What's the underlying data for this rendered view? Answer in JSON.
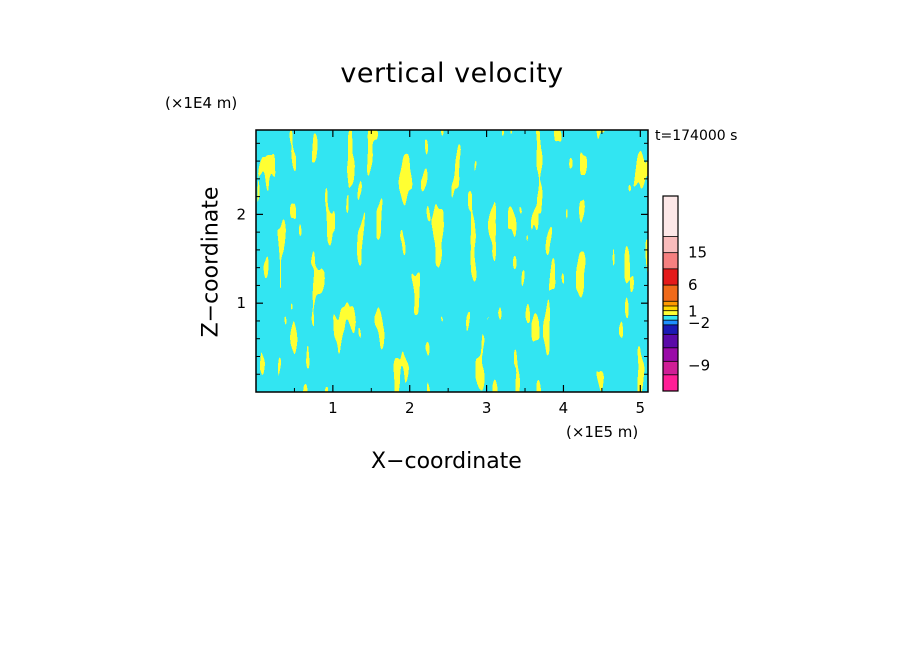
{
  "chart_data": {
    "type": "heatmap",
    "title": "vertical velocity",
    "xlabel": "X−coordinate",
    "ylabel": "Z−coordinate",
    "x_unit": "(×1E5 m)",
    "y_unit": "(×1E4 m)",
    "time_label": "t=174000 s",
    "xlim": [
      0,
      5.1
    ],
    "ylim": [
      0,
      2.95
    ],
    "x_ticks": [
      1,
      2,
      3,
      4,
      5
    ],
    "y_ticks": [
      1,
      2
    ],
    "x_tick_labels": [
      "1",
      "2",
      "3",
      "4",
      "5"
    ],
    "y_tick_labels": [
      "1",
      "2"
    ],
    "colors": {
      "negative": "#33e5f2",
      "positive": "#ffff33"
    },
    "colorbar": {
      "bins": [
        {
          "color": "#fde8e8"
        },
        {
          "color": "#f9bcbc"
        },
        {
          "color": "#f58080"
        },
        {
          "color": "#e41a1a"
        },
        {
          "color": "#f06a1a"
        },
        {
          "color": "#ff9a00"
        },
        {
          "color": "#ffd700"
        },
        {
          "color": "#ffff33"
        },
        {
          "color": "#33e5f2"
        },
        {
          "color": "#1e90ff"
        },
        {
          "color": "#1a1ab4"
        },
        {
          "color": "#5a0aa8"
        },
        {
          "color": "#9a0aa8"
        },
        {
          "color": "#d01e96"
        },
        {
          "color": "#ff1e96"
        }
      ],
      "labels": [
        "15",
        "6",
        "1",
        "−2",
        "−9"
      ]
    }
  }
}
